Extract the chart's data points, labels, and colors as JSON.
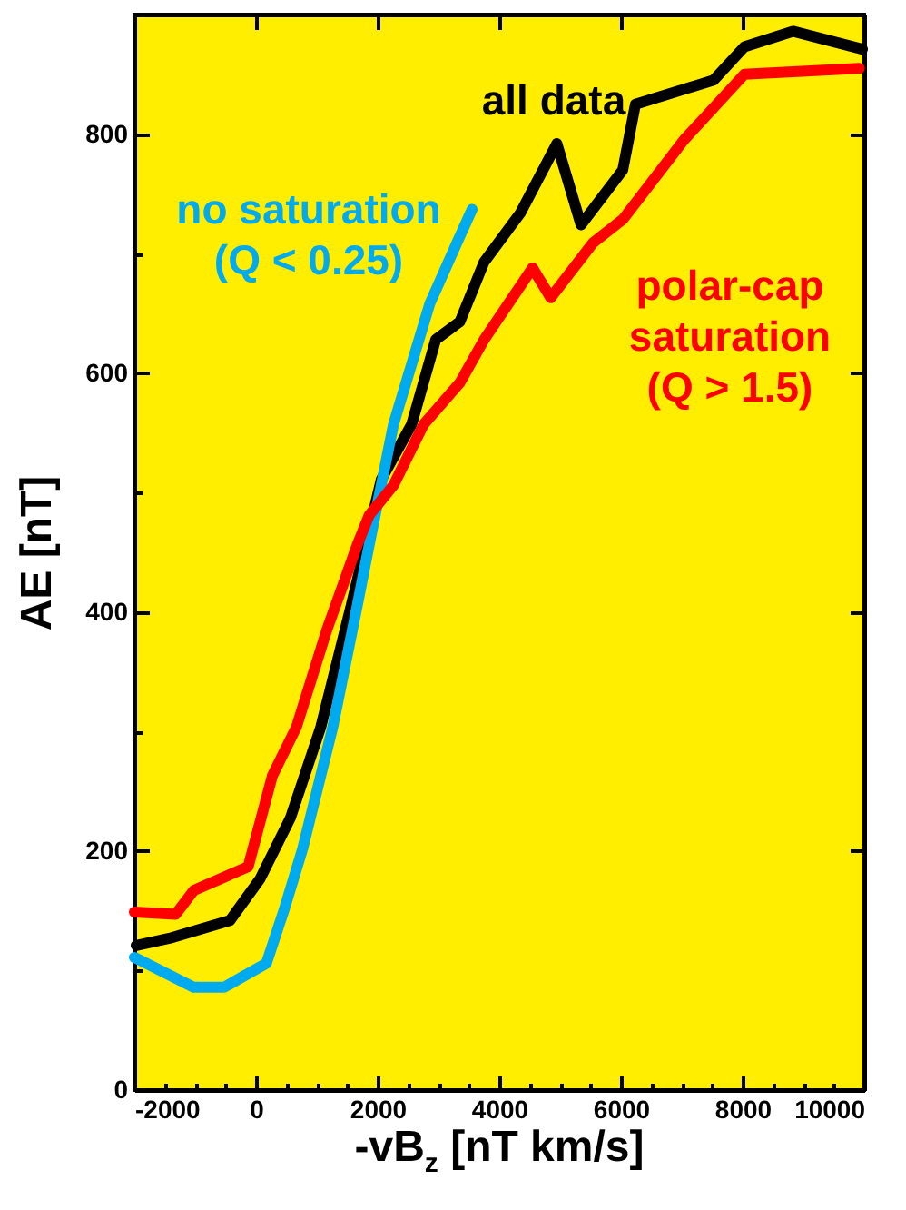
{
  "chart_data": {
    "type": "line",
    "xlabel": "-vB$_{z}$ [nT km/s]",
    "ylabel": "AE [nT]",
    "xlim": [
      -2000,
      10000
    ],
    "ylim": [
      0,
      900
    ],
    "xticks": [
      -2000,
      0,
      2000,
      4000,
      6000,
      8000,
      10000
    ],
    "yticks": [
      0,
      200,
      400,
      600,
      800
    ],
    "grid": false,
    "marker": "none",
    "line_style": "solid",
    "series": [
      {
        "name": "all data",
        "color": "#000000",
        "x": [
          -1970,
          -1424,
          -427,
          69,
          567,
          1066,
          1562,
          2060,
          2558,
          2955,
          3353,
          3751,
          4348,
          4946,
          5343,
          6030,
          6239,
          7522,
          8030,
          8827,
          9970
        ],
        "values": [
          121,
          127,
          142,
          177,
          228,
          304,
          405,
          511,
          557,
          628,
          643,
          693,
          734,
          792,
          724,
          770,
          825,
          845,
          873,
          886,
          871
        ]
      },
      {
        "name": "no saturation\n(Q < 0.25)",
        "color": "#00aaee",
        "x": [
          -2000,
          -1024,
          -527,
          170,
          469,
          767,
          1263,
          1663,
          1860,
          2260,
          2857,
          3303,
          3552
        ],
        "values": [
          111,
          86,
          86,
          106,
          152,
          202,
          304,
          405,
          456,
          557,
          658,
          709,
          737
        ]
      },
      {
        "name": "polar-cap\nsaturation\n(Q > 1.5)",
        "color": "#ff0000",
        "x": [
          -2000,
          -1323,
          -1024,
          -128,
          269,
          666,
          1164,
          1663,
          1860,
          2260,
          2756,
          3353,
          3751,
          4547,
          4845,
          5542,
          6040,
          7035,
          8030,
          9920
        ],
        "values": [
          149,
          147,
          167,
          187,
          263,
          304,
          385,
          456,
          481,
          506,
          557,
          592,
          628,
          688,
          663,
          709,
          729,
          795,
          850,
          855
        ]
      }
    ]
  }
}
